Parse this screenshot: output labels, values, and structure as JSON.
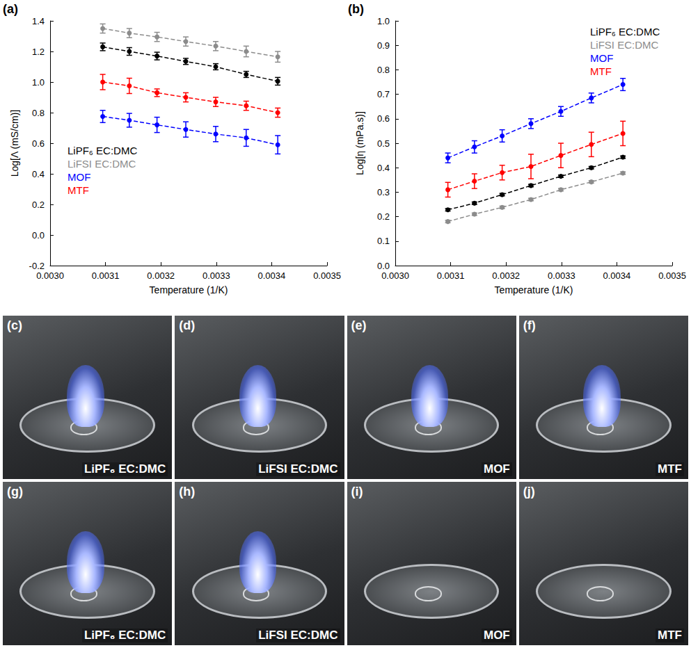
{
  "chart_data": [
    {
      "type": "line",
      "panel_label": "(a)",
      "x_label": "Temperature (1/K)",
      "y_label": "Log[Λ (mS/cm)]",
      "xlim": [
        0.003,
        0.0035
      ],
      "xticks": [
        {
          "value": 0.003,
          "label": "0.0030"
        },
        {
          "value": 0.0031,
          "label": "0.0031"
        },
        {
          "value": 0.0032,
          "label": "0.0032"
        },
        {
          "value": 0.0033,
          "label": "0.0033"
        },
        {
          "value": 0.0034,
          "label": "0.0034"
        },
        {
          "value": 0.0035,
          "label": "0.0035"
        }
      ],
      "ylim": [
        -0.2,
        1.4
      ],
      "yticks": [
        -0.2,
        {
          "value": 0,
          "label": "0.0"
        },
        0.2,
        0.4,
        0.6,
        0.8,
        {
          "value": 1,
          "label": "1.0"
        },
        1.2,
        1.4
      ],
      "grid": false,
      "legend": "lower left",
      "marker": "circle",
      "line_style": "dashed",
      "x": [
        0.003095,
        0.003143,
        0.003193,
        0.003245,
        0.003299,
        0.003354,
        0.003411
      ],
      "series": [
        {
          "name": "LiPF₆ EC:DMC",
          "color": "#000000",
          "values": [
            1.23,
            1.2,
            1.17,
            1.135,
            1.1,
            1.05,
            1.005
          ],
          "errors": [
            0.025,
            0.025,
            0.025,
            0.02,
            0.02,
            0.02,
            0.025
          ]
        },
        {
          "name": "LiFSI EC:DMC",
          "color": "#8c8c8c",
          "values": [
            1.35,
            1.32,
            1.295,
            1.265,
            1.235,
            1.2,
            1.165
          ],
          "errors": [
            0.03,
            0.03,
            0.03,
            0.03,
            0.03,
            0.035,
            0.035
          ]
        },
        {
          "name": "MOF",
          "color": "#0000ff",
          "values": [
            0.775,
            0.75,
            0.72,
            0.69,
            0.66,
            0.635,
            0.59
          ],
          "errors": [
            0.04,
            0.045,
            0.05,
            0.05,
            0.05,
            0.055,
            0.06
          ]
        },
        {
          "name": "MTF",
          "color": "#ff0000",
          "values": [
            1.0,
            0.975,
            0.93,
            0.9,
            0.87,
            0.845,
            0.8
          ],
          "errors": [
            0.05,
            0.05,
            0.025,
            0.03,
            0.03,
            0.03,
            0.03
          ]
        }
      ]
    },
    {
      "type": "line",
      "panel_label": "(b)",
      "x_label": "Temperature (1/K)",
      "y_label": "Log[η (mPa.s)]",
      "xlim": [
        0.003,
        0.0035
      ],
      "xticks": [
        {
          "value": 0.003,
          "label": "0.0030"
        },
        {
          "value": 0.0031,
          "label": "0.0031"
        },
        {
          "value": 0.0032,
          "label": "0.0032"
        },
        {
          "value": 0.0033,
          "label": "0.0033"
        },
        {
          "value": 0.0034,
          "label": "0.0034"
        },
        {
          "value": 0.0035,
          "label": "0.0035"
        }
      ],
      "ylim": [
        0,
        1
      ],
      "yticks": [
        {
          "value": 0,
          "label": "0.0"
        },
        0.1,
        0.2,
        0.3,
        0.4,
        0.5,
        0.6,
        0.7,
        0.8,
        0.9,
        {
          "value": 1,
          "label": "1.0"
        }
      ],
      "grid": false,
      "legend": "upper right",
      "marker": "circle",
      "line_style": "dashed",
      "x": [
        0.003095,
        0.003143,
        0.003193,
        0.003245,
        0.003299,
        0.003354,
        0.003411
      ],
      "series": [
        {
          "name": "LiPF₆ EC:DMC",
          "color": "#000000",
          "values": [
            0.228,
            0.255,
            0.29,
            0.327,
            0.365,
            0.4,
            0.443
          ],
          "errors": [
            0.005,
            0.005,
            0.005,
            0.005,
            0.005,
            0.005,
            0.005
          ]
        },
        {
          "name": "LiFSI EC:DMC",
          "color": "#8c8c8c",
          "values": [
            0.18,
            0.21,
            0.238,
            0.27,
            0.31,
            0.342,
            0.378
          ],
          "errors": [
            0.005,
            0.005,
            0.005,
            0.005,
            0.005,
            0.005,
            0.005
          ]
        },
        {
          "name": "MOF",
          "color": "#0000ff",
          "values": [
            0.44,
            0.485,
            0.53,
            0.58,
            0.63,
            0.685,
            0.74
          ],
          "errors": [
            0.02,
            0.025,
            0.025,
            0.02,
            0.02,
            0.02,
            0.025
          ]
        },
        {
          "name": "MTF",
          "color": "#ff0000",
          "values": [
            0.31,
            0.345,
            0.38,
            0.405,
            0.45,
            0.495,
            0.54
          ],
          "errors": [
            0.03,
            0.03,
            0.03,
            0.05,
            0.05,
            0.05,
            0.05
          ]
        }
      ]
    }
  ],
  "photos": [
    {
      "panel_label": "(c)",
      "label": "LiPF₆ EC:DMC"
    },
    {
      "panel_label": "(d)",
      "label": "LiFSI EC:DMC"
    },
    {
      "panel_label": "(e)",
      "label": "MOF"
    },
    {
      "panel_label": "(f)",
      "label": "MTF"
    },
    {
      "panel_label": "(g)",
      "label": "LiPF₆ EC:DMC"
    },
    {
      "panel_label": "(h)",
      "label": "LiFSI EC:DMC"
    },
    {
      "panel_label": "(i)",
      "label": "MOF"
    },
    {
      "panel_label": "(j)",
      "label": "MTF"
    }
  ]
}
